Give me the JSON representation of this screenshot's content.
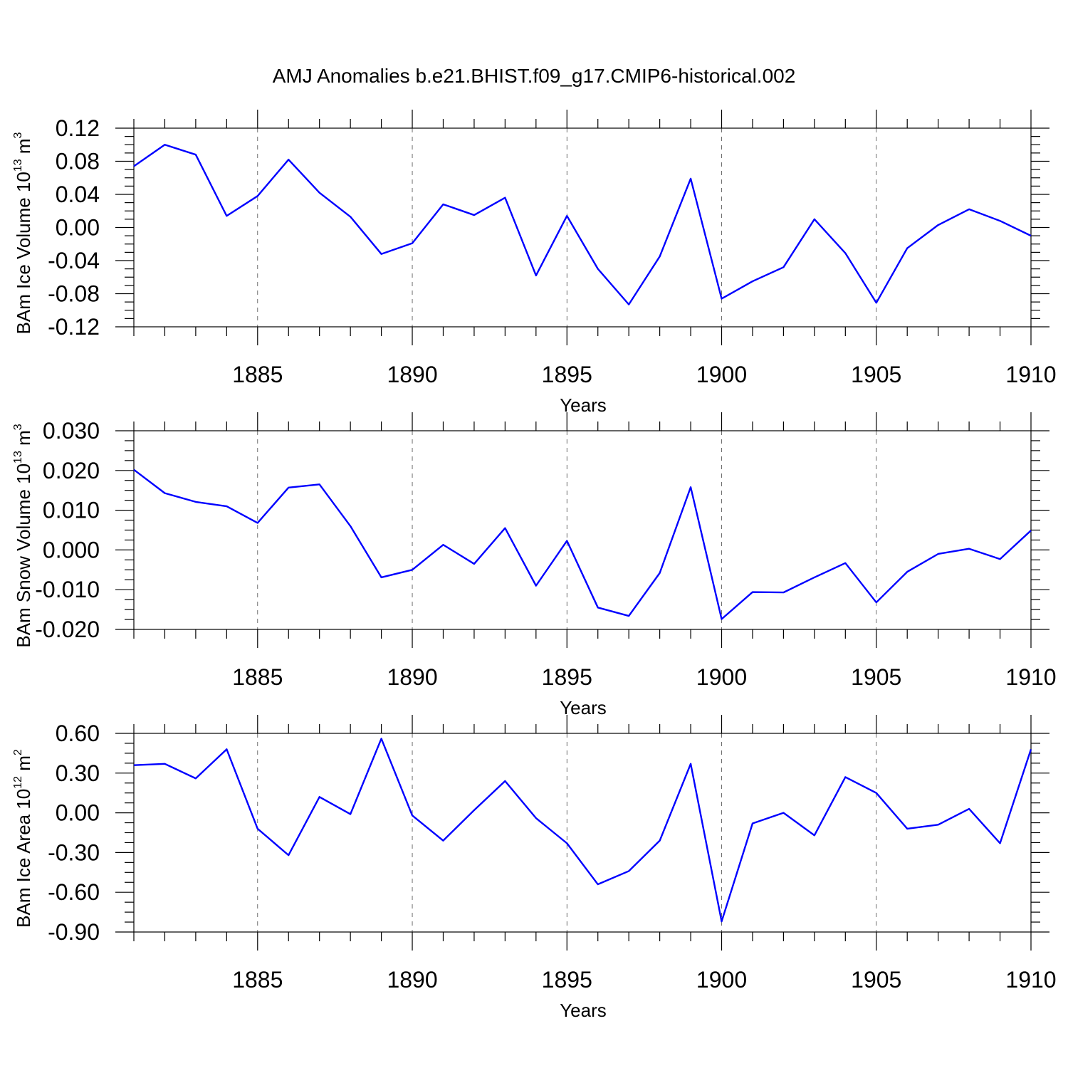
{
  "title": "AMJ Anomalies b.e21.BHIST.f09_g17.CMIP6-historical.002",
  "chart_data": [
    {
      "type": "line",
      "id": "ice-volume",
      "ylabel": {
        "prefix": "BAm Ice Volume 10",
        "exp": "13",
        "unit": " m",
        "unit_exp": "3"
      },
      "xlabel": "Years",
      "xlim": [
        1881,
        1910
      ],
      "ylim": [
        -0.12,
        0.12
      ],
      "x_ticks": [
        1885,
        1890,
        1895,
        1900,
        1905,
        1910
      ],
      "y_ticks": [
        -0.12,
        -0.08,
        -0.04,
        0.0,
        0.04,
        0.08,
        0.12
      ],
      "y_tick_labels": [
        "-0.12",
        "-0.08",
        "-0.04",
        "0.00",
        "0.04",
        "0.08",
        "0.12"
      ],
      "grid": "dashed vertical at major x ticks",
      "x": [
        1881,
        1882,
        1883,
        1884,
        1885,
        1886,
        1887,
        1888,
        1889,
        1890,
        1891,
        1892,
        1893,
        1894,
        1895,
        1896,
        1897,
        1898,
        1899,
        1900,
        1901,
        1902,
        1903,
        1904,
        1905,
        1906,
        1907,
        1908,
        1909,
        1910
      ],
      "values": [
        0.074,
        0.1,
        0.088,
        0.014,
        0.038,
        0.082,
        0.042,
        0.013,
        -0.032,
        -0.019,
        0.028,
        0.015,
        0.036,
        -0.058,
        0.014,
        -0.05,
        -0.093,
        -0.035,
        0.059,
        -0.086,
        -0.065,
        -0.048,
        0.01,
        -0.031,
        -0.091,
        -0.025,
        0.003,
        0.022,
        0.008,
        -0.01
      ]
    },
    {
      "type": "line",
      "id": "snow-volume",
      "ylabel": {
        "prefix": "BAm Snow Volume 10",
        "exp": "13",
        "unit": " m",
        "unit_exp": "3"
      },
      "xlabel": "Years",
      "xlim": [
        1881,
        1910
      ],
      "ylim": [
        -0.02,
        0.03
      ],
      "x_ticks": [
        1885,
        1890,
        1895,
        1900,
        1905,
        1910
      ],
      "y_ticks": [
        -0.02,
        -0.01,
        0.0,
        0.01,
        0.02,
        0.03
      ],
      "y_tick_labels": [
        "-0.020",
        "-0.010",
        "0.000",
        "0.010",
        "0.020",
        "0.030"
      ],
      "grid": "dashed vertical at major x ticks",
      "x": [
        1881,
        1882,
        1883,
        1884,
        1885,
        1886,
        1887,
        1888,
        1889,
        1890,
        1891,
        1892,
        1893,
        1894,
        1895,
        1896,
        1897,
        1898,
        1899,
        1900,
        1901,
        1902,
        1903,
        1904,
        1905,
        1906,
        1907,
        1908,
        1909,
        1910
      ],
      "values": [
        0.0202,
        0.0143,
        0.0121,
        0.011,
        0.0068,
        0.0157,
        0.0165,
        0.006,
        -0.0069,
        -0.005,
        0.0013,
        -0.0035,
        0.0055,
        -0.009,
        0.0023,
        -0.0145,
        -0.0166,
        -0.0058,
        0.0158,
        -0.0174,
        -0.0106,
        -0.0107,
        -0.0069,
        -0.0033,
        -0.0132,
        -0.0055,
        -0.001,
        0.0003,
        -0.0023,
        0.0049
      ]
    },
    {
      "type": "line",
      "id": "ice-area",
      "ylabel": {
        "prefix": "BAm Ice Area 10",
        "exp": "12",
        "unit": " m",
        "unit_exp": "2"
      },
      "xlabel": "Years",
      "xlim": [
        1881,
        1910
      ],
      "ylim": [
        -0.9,
        0.6
      ],
      "x_ticks": [
        1885,
        1890,
        1895,
        1900,
        1905,
        1910
      ],
      "y_ticks": [
        -0.9,
        -0.6,
        -0.3,
        0.0,
        0.3,
        0.6
      ],
      "y_tick_labels": [
        "-0.90",
        "-0.60",
        "-0.30",
        "0.00",
        "0.30",
        "0.60"
      ],
      "grid": "dashed vertical at major x ticks",
      "x": [
        1881,
        1882,
        1883,
        1884,
        1885,
        1886,
        1887,
        1888,
        1889,
        1890,
        1891,
        1892,
        1893,
        1894,
        1895,
        1896,
        1897,
        1898,
        1899,
        1900,
        1901,
        1902,
        1903,
        1904,
        1905,
        1906,
        1907,
        1908,
        1909,
        1910
      ],
      "values": [
        0.36,
        0.37,
        0.26,
        0.48,
        -0.12,
        -0.32,
        0.12,
        -0.01,
        0.56,
        -0.02,
        -0.21,
        0.02,
        0.24,
        -0.04,
        -0.23,
        -0.54,
        -0.44,
        -0.21,
        0.37,
        -0.82,
        -0.08,
        0.0,
        -0.17,
        0.27,
        0.15,
        -0.12,
        -0.09,
        0.03,
        -0.23,
        0.48
      ]
    }
  ]
}
